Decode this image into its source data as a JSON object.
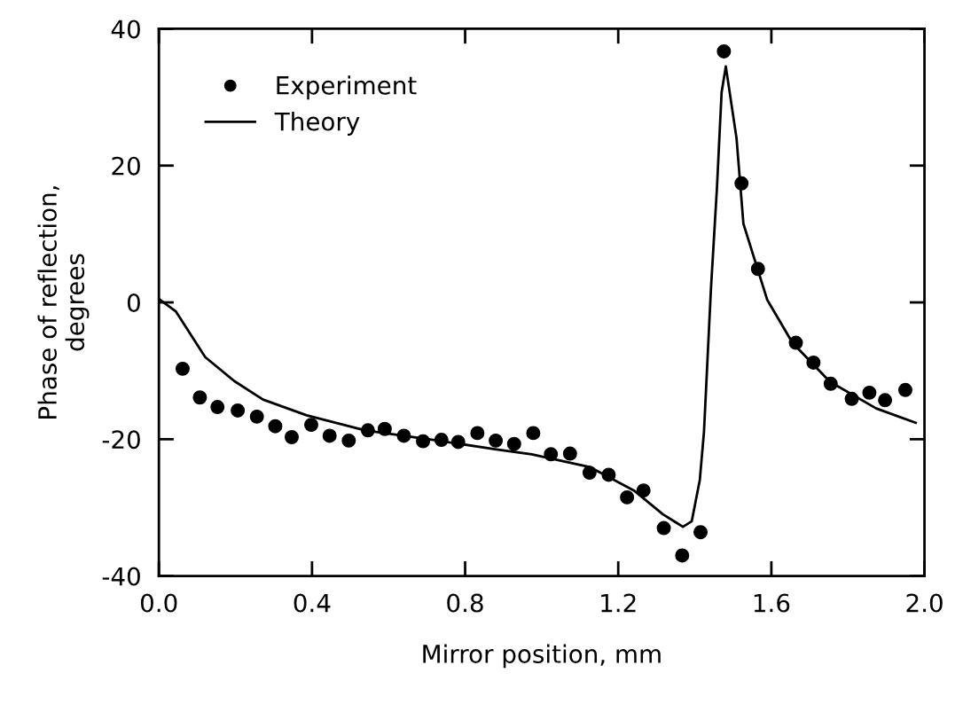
{
  "chart_data": {
    "type": "scatter",
    "xlabel": "Mirror position, mm",
    "ylabel": "Phase of reflection,\ndegrees",
    "xlim": [
      0,
      2.0
    ],
    "ylim": [
      -40,
      40
    ],
    "xticks": [
      {
        "value": 0,
        "label": "0.0"
      },
      {
        "value": 0.4,
        "label": "0.4"
      },
      {
        "value": 0.8,
        "label": "0.8"
      },
      {
        "value": 1.2,
        "label": "1.2"
      },
      {
        "value": 1.6,
        "label": "1.6"
      },
      {
        "value": 2.0,
        "label": "2.0"
      }
    ],
    "yticks": [
      -40,
      -20,
      0,
      20,
      40
    ],
    "grid": false,
    "legend": "top left",
    "series": [
      {
        "name": "Experiment",
        "marker": "circle",
        "color": "#000000",
        "x": [
          0.062,
          0.107,
          0.153,
          0.206,
          0.256,
          0.304,
          0.347,
          0.398,
          0.446,
          0.496,
          0.546,
          0.59,
          0.64,
          0.69,
          0.738,
          0.782,
          0.832,
          0.88,
          0.928,
          0.978,
          1.024,
          1.074,
          1.125,
          1.175,
          1.223,
          1.266,
          1.319,
          1.367,
          1.415,
          1.476,
          1.522,
          1.565,
          1.664,
          1.71,
          1.755,
          1.81,
          1.856,
          1.897,
          1.95
        ],
        "values": [
          -9.7,
          -13.9,
          -15.3,
          -15.8,
          -16.7,
          -18.1,
          -19.7,
          -17.9,
          -19.5,
          -20.2,
          -18.7,
          -18.5,
          -19.5,
          -20.3,
          -20.1,
          -20.4,
          -19.1,
          -20.2,
          -20.7,
          -19.1,
          -22.2,
          -22.1,
          -24.9,
          -25.2,
          -28.5,
          -27.5,
          -33.0,
          -37.0,
          -33.6,
          36.7,
          17.4,
          4.9,
          -5.9,
          -8.8,
          -11.9,
          -14.1,
          -13.2,
          -14.3,
          -12.8
        ]
      },
      {
        "name": "Theory",
        "type": "line",
        "line_style": "solid",
        "color": "#000000",
        "x": [
          0.0,
          0.044,
          0.121,
          0.197,
          0.272,
          0.386,
          0.539,
          0.729,
          0.882,
          0.974,
          1.127,
          1.241,
          1.317,
          1.369,
          1.392,
          1.413,
          1.424,
          1.442,
          1.458,
          1.47,
          1.481,
          1.509,
          1.527,
          1.589,
          1.655,
          1.753,
          1.874,
          1.977
        ],
        "values": [
          0.5,
          -1.3,
          -8.0,
          -11.5,
          -14.2,
          -16.5,
          -18.7,
          -20.2,
          -21.5,
          -22.2,
          -24.1,
          -27.5,
          -31.0,
          -32.8,
          -32.0,
          -26.0,
          -18.9,
          1.8,
          16.9,
          30.7,
          34.5,
          24.0,
          11.5,
          0.4,
          -5.9,
          -11.6,
          -15.5,
          -17.6
        ]
      }
    ]
  }
}
